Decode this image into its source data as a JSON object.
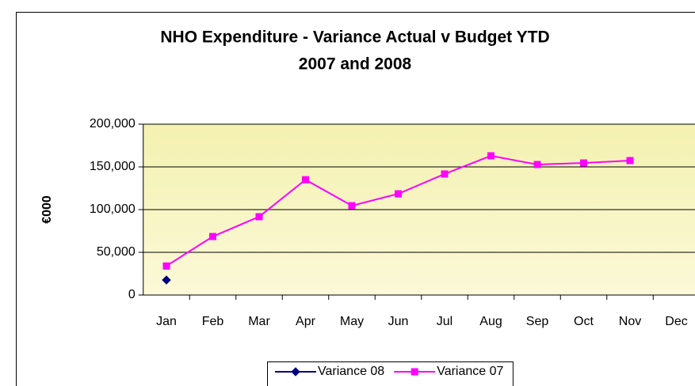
{
  "chart_data": {
    "type": "line",
    "title": "NHO Expenditure - Variance Actual v Budget YTD",
    "subtitle": "2007 and 2008",
    "y_label": "€000",
    "categories": [
      "Jan",
      "Feb",
      "Mar",
      "Apr",
      "May",
      "Jun",
      "Jul",
      "Aug",
      "Sep",
      "Oct",
      "Nov",
      "Dec"
    ],
    "series": [
      {
        "name": "Variance 08",
        "color": "#000080",
        "marker": "diamond",
        "values": [
          17600,
          null,
          null,
          null,
          null,
          null,
          null,
          null,
          null,
          null,
          null,
          null
        ]
      },
      {
        "name": "Variance 07",
        "color": "#ff00ff",
        "marker": "square",
        "values": [
          34000,
          68500,
          91700,
          135000,
          104600,
          118500,
          141700,
          163000,
          152800,
          154600,
          157400,
          null
        ]
      }
    ],
    "ylim": [
      0,
      200000
    ],
    "yticks": [
      0,
      {
        "value": 50000,
        "label": "50,000"
      },
      {
        "value": 100000,
        "label": "100,000"
      },
      {
        "value": 150000,
        "label": "150,000"
      },
      {
        "value": 200000,
        "label": "200,000"
      }
    ],
    "grid": true,
    "legend": "bottom"
  }
}
